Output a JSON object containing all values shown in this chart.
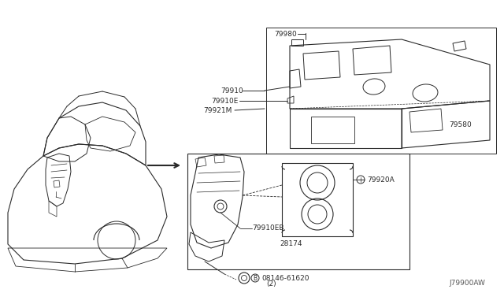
{
  "bg_color": "#ffffff",
  "line_color": "#2a2a2a",
  "diagram_ref": "J79900AW",
  "parts": {
    "79980": "79980",
    "79910": "79910",
    "79910E": "79910E",
    "79921M": "79921M",
    "79580": "79580",
    "79920A": "79920A",
    "79910EB": "79910EB",
    "28174": "28174",
    "08146": "08146-61620",
    "08146_2": "(2)"
  },
  "font_size": 6.5,
  "arrow_lw": 1.4
}
